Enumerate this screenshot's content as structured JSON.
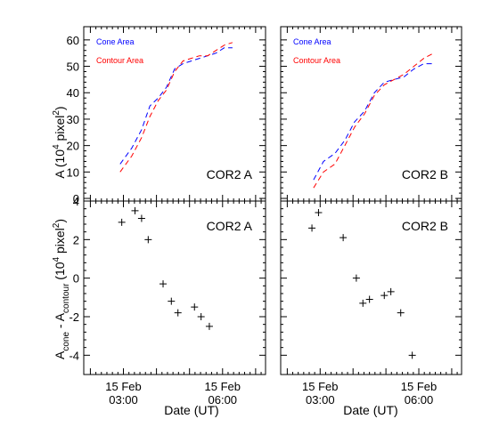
{
  "figure": {
    "xlabel": "Date (UT)",
    "x_ticks": [
      {
        "t": 3.0,
        "line1": "15 Feb",
        "line2": "03:00"
      },
      {
        "t": 6.0,
        "line1": "15 Feb",
        "line2": "06:00"
      }
    ],
    "top_ylabel": {
      "main": "A (10",
      "sup1": "4",
      "mid": " pixel",
      "sup2": "2",
      "end": ")"
    },
    "bottom_ylabel": {
      "a": "A",
      "sub1": "cone",
      "dash": " - A",
      "sub2": "contour",
      "sp": "  (10",
      "sup1": "4",
      "mid": " pixel",
      "sup2": "2",
      "end": ")"
    }
  },
  "colors": {
    "cone": "#0000ff",
    "contour": "#ff0000",
    "marker": "#000000"
  },
  "chart_data": [
    {
      "type": "line",
      "panel_label": "COR2 A",
      "xlim": [
        1.8,
        7.3
      ],
      "ylim": [
        -1,
        65
      ],
      "yticks": [
        0,
        10,
        20,
        30,
        40,
        50,
        60
      ],
      "legend": [
        {
          "name": "Cone Area",
          "color": "#0000ff"
        },
        {
          "name": "Contour Area",
          "color": "#ff0000"
        }
      ],
      "legend_position": "top-left",
      "series": [
        {
          "name": "Cone Area",
          "x": [
            2.9,
            3.25,
            3.55,
            3.8,
            4.05,
            4.3,
            4.55,
            4.8,
            5.05,
            5.3,
            5.55,
            5.8,
            6.05,
            6.3
          ],
          "y": [
            13,
            19,
            26,
            35,
            38,
            42,
            49,
            51,
            52,
            53,
            54,
            55,
            57,
            57
          ]
        },
        {
          "name": "Contour Area",
          "x": [
            2.9,
            3.25,
            3.55,
            3.8,
            4.05,
            4.3,
            4.55,
            4.8,
            5.05,
            5.3,
            5.55,
            5.8,
            6.05,
            6.3
          ],
          "y": [
            10,
            16,
            23,
            31,
            37,
            41,
            48,
            52,
            53,
            54,
            54,
            56,
            58,
            59
          ]
        }
      ]
    },
    {
      "type": "line",
      "panel_label": "COR2 B",
      "xlim": [
        1.8,
        7.3
      ],
      "ylim": [
        -1,
        65
      ],
      "yticks": [
        0,
        10,
        20,
        30,
        40,
        50,
        60
      ],
      "legend": [
        {
          "name": "Cone Area",
          "color": "#0000ff"
        },
        {
          "name": "Contour Area",
          "color": "#ff0000"
        }
      ],
      "legend_position": "top-left",
      "series": [
        {
          "name": "Cone Area",
          "x": [
            2.8,
            3.1,
            3.45,
            3.75,
            4.05,
            4.35,
            4.65,
            4.95,
            5.25,
            5.55,
            5.85,
            6.15,
            6.45
          ],
          "y": [
            7,
            14,
            17,
            22,
            29,
            33,
            40,
            44,
            45,
            46,
            49,
            51,
            51
          ]
        },
        {
          "name": "Contour Area",
          "x": [
            2.8,
            3.1,
            3.45,
            3.75,
            4.05,
            4.35,
            4.65,
            4.95,
            5.25,
            5.55,
            5.85,
            6.15,
            6.45
          ],
          "y": [
            4,
            10,
            13,
            20,
            27,
            32,
            39,
            43,
            45,
            47,
            50,
            53,
            55
          ]
        }
      ]
    },
    {
      "type": "scatter",
      "panel_label": "COR2 A",
      "xlim": [
        1.8,
        7.3
      ],
      "ylim": [
        -5,
        4
      ],
      "yticks": [
        -4,
        -2,
        0,
        2,
        4
      ],
      "series": [
        {
          "name": "",
          "x": [
            2.95,
            3.35,
            3.55,
            3.75,
            4.2,
            4.45,
            4.65,
            5.15,
            5.35,
            5.6
          ],
          "y": [
            2.9,
            3.5,
            3.1,
            2.0,
            -0.3,
            -1.2,
            -1.8,
            -1.5,
            -2.0,
            -2.5
          ]
        }
      ]
    },
    {
      "type": "scatter",
      "panel_label": "COR2 B",
      "xlim": [
        1.8,
        7.3
      ],
      "ylim": [
        -5,
        4
      ],
      "yticks": [
        -4,
        -2,
        0,
        2,
        4
      ],
      "series": [
        {
          "name": "",
          "x": [
            2.75,
            2.95,
            3.7,
            4.1,
            4.3,
            4.5,
            4.95,
            5.15,
            5.45,
            5.8
          ],
          "y": [
            2.6,
            3.4,
            2.1,
            0.0,
            -1.3,
            -1.1,
            -0.9,
            -0.7,
            -1.8,
            -4.0
          ]
        }
      ]
    }
  ]
}
